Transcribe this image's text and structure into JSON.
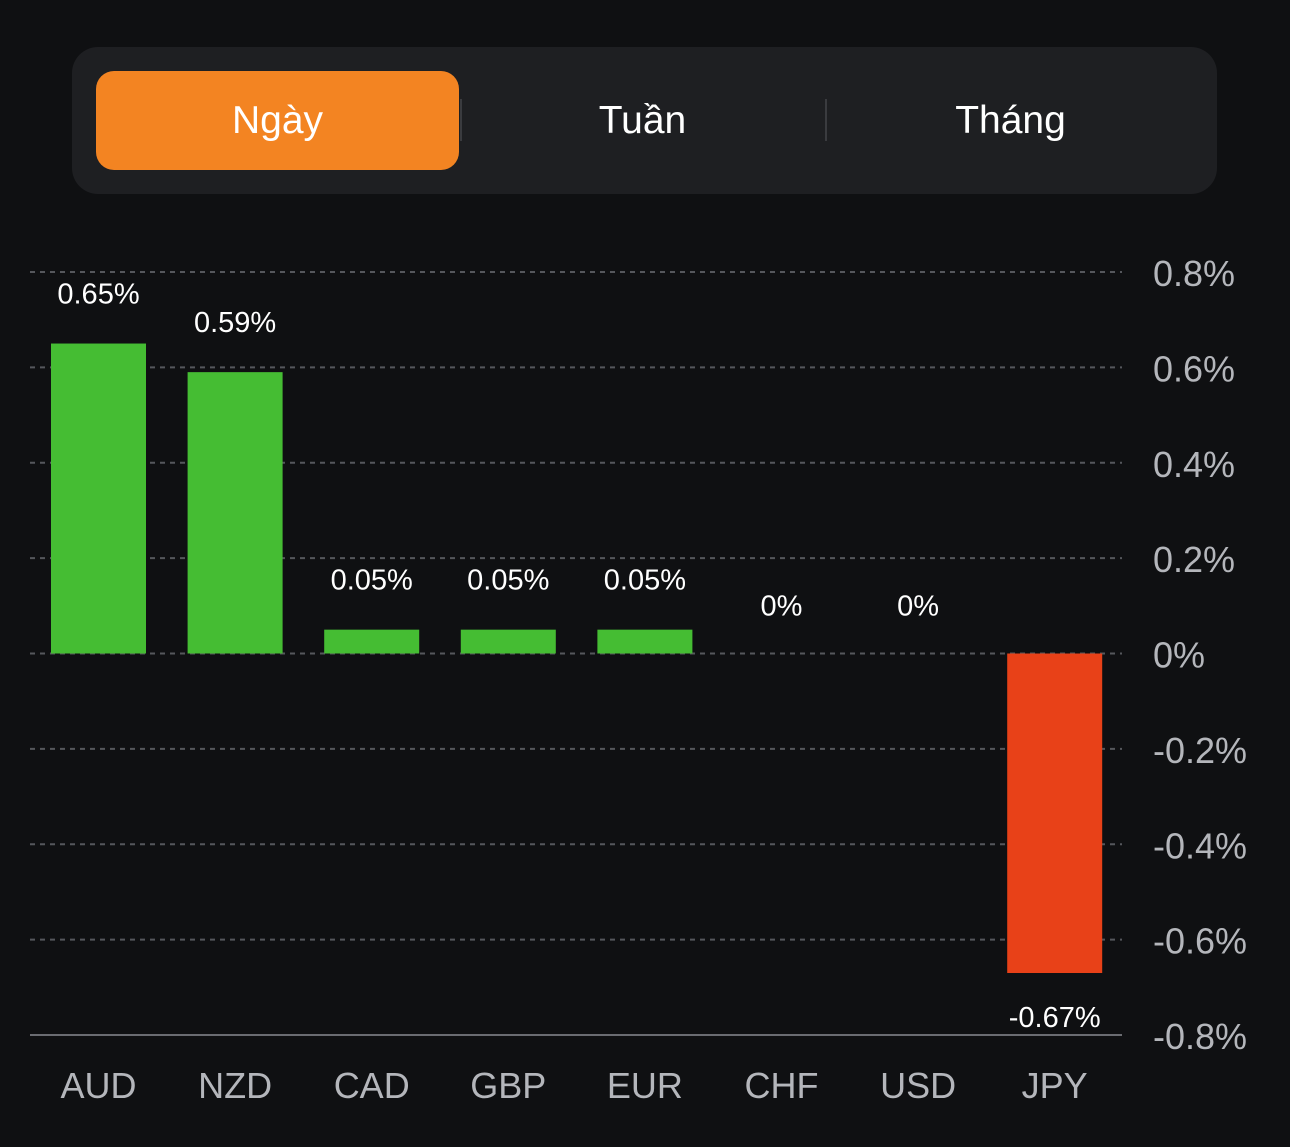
{
  "tabs": [
    {
      "label": "Ngày",
      "active": true
    },
    {
      "label": "Tuần",
      "active": false
    },
    {
      "label": "Tháng",
      "active": false
    }
  ],
  "colors": {
    "background": "#0f1012",
    "tab_bar": "#1e1f22",
    "active_tab": "#f38422",
    "positive": "#45bd33",
    "negative": "#e84118",
    "axis_text": "#b4b6bb",
    "grid": "#55575c"
  },
  "chart_data": {
    "type": "bar",
    "categories": [
      "AUD",
      "NZD",
      "CAD",
      "GBP",
      "EUR",
      "CHF",
      "USD",
      "JPY"
    ],
    "values": [
      0.65,
      0.59,
      0.05,
      0.05,
      0.05,
      0,
      0,
      -0.67
    ],
    "value_labels": [
      "0.65%",
      "0.59%",
      "0.05%",
      "0.05%",
      "0.05%",
      "0%",
      "0%",
      "-0.67%"
    ],
    "yticks": [
      0.8,
      0.6,
      0.4,
      0.2,
      0,
      -0.2,
      -0.4,
      -0.6,
      -0.8
    ],
    "ytick_labels": [
      "0.8%",
      "0.6%",
      "0.4%",
      "0.2%",
      "0%",
      "-0.2%",
      "-0.4%",
      "-0.6%",
      "-0.8%"
    ],
    "ylim": [
      -0.8,
      0.8
    ],
    "y_axis_side": "right",
    "grid": true,
    "title": "",
    "xlabel": "",
    "ylabel": ""
  }
}
